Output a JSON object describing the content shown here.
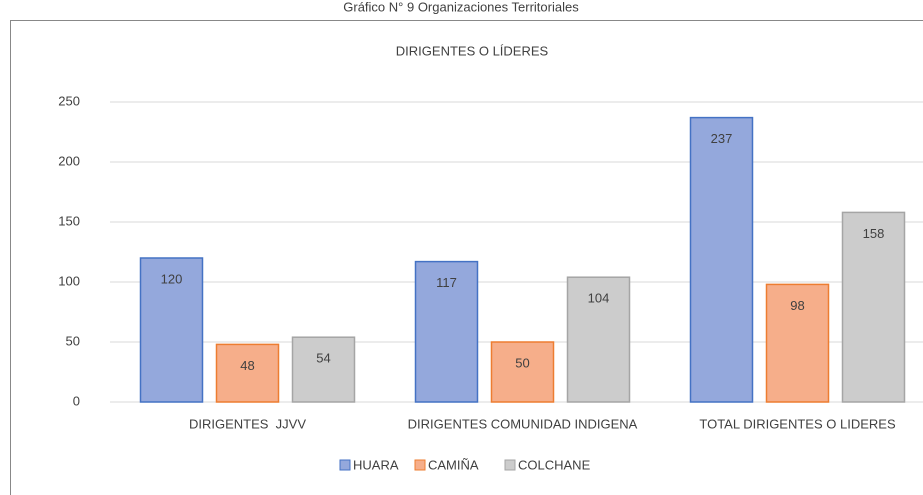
{
  "caption": "Gráfico N° 9 Organizaciones Territoriales",
  "chart_data": {
    "type": "bar",
    "title": "DIRIGENTES O LÍDERES",
    "categories": [
      "DIRIGENTES  JJVV",
      "DIRIGENTES COMUNIDAD INDIGENA",
      "TOTAL DIRIGENTES O LIDERES"
    ],
    "series": [
      {
        "name": "HUARA",
        "color": "#94a8dc",
        "border": "#4472c4",
        "values": [
          120,
          117,
          237
        ]
      },
      {
        "name": "CAMIÑA",
        "color": "#f6ae8a",
        "border": "#ed7d31",
        "values": [
          48,
          50,
          98
        ]
      },
      {
        "name": "COLCHANE",
        "color": "#cccccc",
        "border": "#a5a5a5",
        "values": [
          54,
          104,
          158
        ]
      }
    ],
    "ylim": [
      0,
      250
    ],
    "yticks": [
      0,
      50,
      100,
      150,
      200,
      250
    ],
    "grid": true,
    "legend": "bottom"
  }
}
